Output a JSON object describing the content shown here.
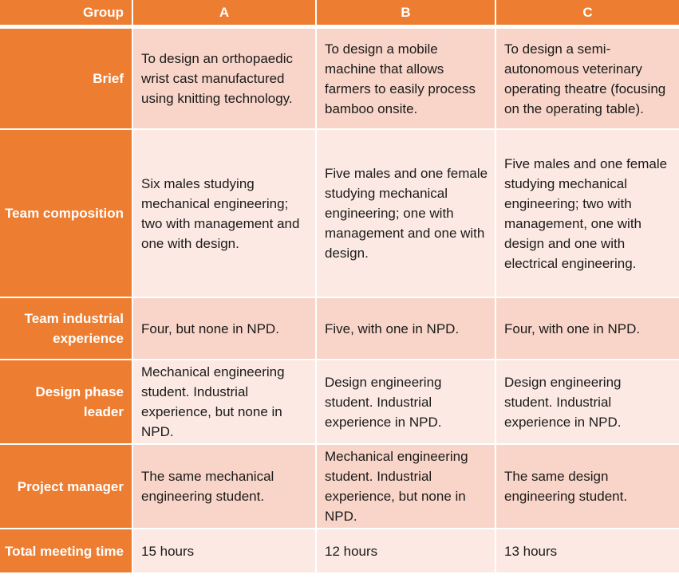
{
  "header": {
    "group_label": "Group",
    "columns": [
      "A",
      "B",
      "C"
    ]
  },
  "rows": [
    {
      "label": "Brief",
      "cells": [
        "To design an orthopaedic wrist cast manufactured using knitting technology.",
        "To design a mobile machine that allows farmers to easily process bamboo onsite.",
        "To design a semi-autonomous veterinary operating theatre (focusing on the operating table)."
      ]
    },
    {
      "label": "Team composition",
      "cells": [
        "Six males studying mechanical engineering; two with management and one with design.",
        "Five males and one female studying mechanical engineering; one with management and one with design.",
        "Five males and one female studying mechanical engineering; two with management, one with design and one with electrical engineering."
      ]
    },
    {
      "label": "Team industrial experience",
      "cells": [
        "Four, but none in NPD.",
        "Five, with one in NPD.",
        "Four, with one in NPD."
      ]
    },
    {
      "label": "Design phase leader",
      "cells": [
        "Mechanical engineering student. Industrial experience, but none in NPD.",
        "Design engineering student. Industrial experience in NPD.",
        "Design engineering student. Industrial experience in NPD."
      ]
    },
    {
      "label": "Project manager",
      "cells": [
        "The same mechanical engineering student.",
        "Mechanical engineering student. Industrial experience, but none in NPD.",
        "The same design engineering student."
      ]
    },
    {
      "label": "Total meeting time",
      "cells": [
        "15 hours",
        "12 hours",
        "13 hours"
      ]
    }
  ]
}
